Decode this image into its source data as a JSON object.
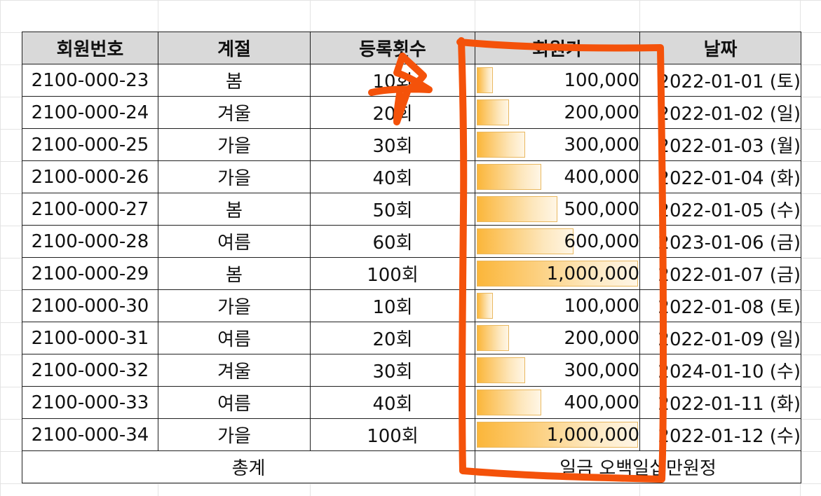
{
  "headers": {
    "member_id": "회원번호",
    "season": "계절",
    "count": "등록횟수",
    "price": "회원가",
    "date": "날짜"
  },
  "rows": [
    {
      "id": "2100-000-23",
      "season": "봄",
      "count": "10회",
      "price": "100,000",
      "price_value": 100000,
      "date": "2022-01-01 (토)"
    },
    {
      "id": "2100-000-24",
      "season": "겨울",
      "count": "20회",
      "price": "200,000",
      "price_value": 200000,
      "date": "2022-01-02 (일)"
    },
    {
      "id": "2100-000-25",
      "season": "가을",
      "count": "30회",
      "price": "300,000",
      "price_value": 300000,
      "date": "2022-01-03 (월)"
    },
    {
      "id": "2100-000-26",
      "season": "가을",
      "count": "40회",
      "price": "400,000",
      "price_value": 400000,
      "date": "2022-01-04 (화)"
    },
    {
      "id": "2100-000-27",
      "season": "봄",
      "count": "50회",
      "price": "500,000",
      "price_value": 500000,
      "date": "2022-01-05 (수)"
    },
    {
      "id": "2100-000-28",
      "season": "여름",
      "count": "60회",
      "price": "600,000",
      "price_value": 600000,
      "date": "2023-01-06 (금)"
    },
    {
      "id": "2100-000-29",
      "season": "봄",
      "count": "100회",
      "price": "1,000,000",
      "price_value": 1000000,
      "date": "2022-01-07 (금)"
    },
    {
      "id": "2100-000-30",
      "season": "가을",
      "count": "10회",
      "price": "100,000",
      "price_value": 100000,
      "date": "2022-01-08 (토)"
    },
    {
      "id": "2100-000-31",
      "season": "여름",
      "count": "20회",
      "price": "200,000",
      "price_value": 200000,
      "date": "2022-01-09 (일)"
    },
    {
      "id": "2100-000-32",
      "season": "겨울",
      "count": "30회",
      "price": "300,000",
      "price_value": 300000,
      "date": "2024-01-10 (수)"
    },
    {
      "id": "2100-000-33",
      "season": "여름",
      "count": "40회",
      "price": "400,000",
      "price_value": 400000,
      "date": "2022-01-11 (화)"
    },
    {
      "id": "2100-000-34",
      "season": "가을",
      "count": "100회",
      "price": "1,000,000",
      "price_value": 1000000,
      "date": "2022-01-12 (수)"
    }
  ],
  "total": {
    "label": "총계",
    "value": "일금 오백일십만원정"
  },
  "data_bar_max": 1000000,
  "colors": {
    "header_bg": "#d9d9d9",
    "data_bar": "#fbb63a",
    "annotation": "#f4520a",
    "grid": "#e3e3e3"
  }
}
